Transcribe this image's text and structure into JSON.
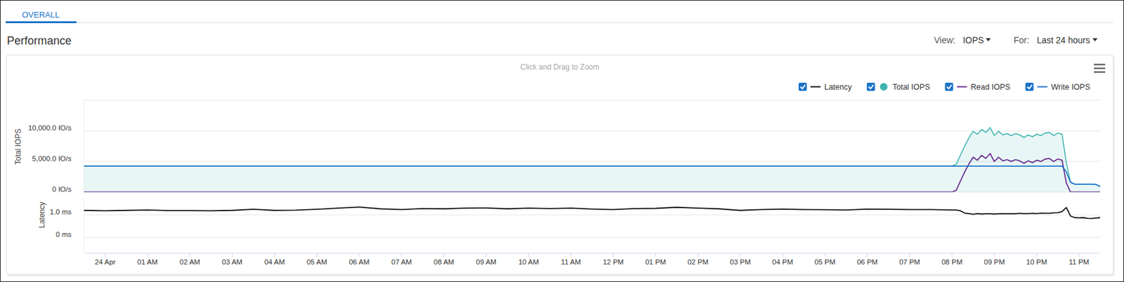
{
  "page": {
    "tab": "OVERALL",
    "title": "Performance",
    "view_label": "View:",
    "view": "IOPS",
    "for_label": "For:",
    "for": "Last 24 hours",
    "hint": "Click and Drag to Zoom"
  },
  "chart_data": [
    {
      "type": "line",
      "y_label": "Total IOPS",
      "grid": true,
      "legend": "top-right",
      "tick_labels": "y",
      "xlim": [
        -0.5,
        23.5
      ],
      "ylim": [
        0,
        15000
      ],
      "yticks": [
        {
          "value": 0,
          "label": "0 IO/s"
        },
        {
          "value": 5000,
          "label": "5,000.0 IO/s"
        },
        {
          "value": 10000,
          "label": "10,000.0 IO/s"
        }
      ],
      "x": [
        -0.5,
        0,
        0.5,
        1,
        1.5,
        2,
        2.5,
        3,
        3.5,
        4,
        4.5,
        5,
        5.5,
        6,
        6.5,
        7,
        7.5,
        8,
        8.5,
        9,
        9.5,
        10,
        10.5,
        11,
        11.5,
        12,
        12.5,
        13,
        13.5,
        14,
        14.5,
        15,
        15.5,
        16,
        16.5,
        17,
        17.5,
        18,
        18.5,
        19,
        19.5,
        20,
        20.1,
        20.2,
        20.3,
        20.4,
        20.5,
        20.6,
        20.7,
        20.8,
        20.9,
        21,
        21.1,
        21.2,
        21.3,
        21.4,
        21.5,
        21.6,
        21.7,
        21.8,
        21.9,
        22,
        22.1,
        22.2,
        22.3,
        22.4,
        22.5,
        22.6,
        22.7,
        22.8,
        22.9,
        23,
        23.1,
        23.2,
        23.3,
        23.4,
        23.5
      ],
      "series": [
        {
          "name": "Total IOPS",
          "type": "area",
          "marker": "circle",
          "color": "#3fb5b0",
          "values": [
            4240,
            4240,
            4240,
            4240,
            4240,
            4240,
            4240,
            4240,
            4240,
            4240,
            4240,
            4240,
            4240,
            4240,
            4240,
            4240,
            4240,
            4240,
            4240,
            4240,
            4240,
            4240,
            4240,
            4240,
            4240,
            4240,
            4240,
            4240,
            4240,
            4240,
            4240,
            4240,
            4240,
            4240,
            4240,
            4240,
            4240,
            4240,
            4240,
            4240,
            4240,
            4240,
            4540,
            6040,
            7540,
            8840,
            9940,
            9440,
            10240,
            9740,
            10540,
            9240,
            9940,
            9340,
            9540,
            9240,
            9540,
            9340,
            8940,
            9340,
            9040,
            9440,
            9240,
            9640,
            9740,
            9240,
            9640,
            9440,
            4800,
            1600,
            1300,
            1300,
            1300,
            1300,
            1300,
            1250,
            900
          ]
        },
        {
          "name": "Read IOPS",
          "type": "line",
          "color": "#6a2c91",
          "values": [
            0,
            0,
            0,
            0,
            0,
            0,
            0,
            0,
            0,
            0,
            0,
            0,
            0,
            0,
            0,
            0,
            0,
            0,
            0,
            0,
            0,
            0,
            0,
            0,
            0,
            0,
            0,
            0,
            0,
            0,
            0,
            0,
            0,
            0,
            0,
            0,
            0,
            0,
            0,
            0,
            0,
            0,
            300,
            1800,
            3300,
            4600,
            5700,
            5200,
            6000,
            5500,
            6300,
            5000,
            5700,
            5100,
            5300,
            5000,
            5300,
            5100,
            4700,
            5100,
            4800,
            5200,
            5000,
            5400,
            5500,
            5000,
            5400,
            5200,
            1500,
            0,
            0,
            0,
            0,
            0,
            0,
            0,
            0
          ]
        },
        {
          "name": "Write IOPS",
          "type": "line",
          "color": "#1a73c9",
          "values": [
            4240,
            4240,
            4240,
            4240,
            4240,
            4240,
            4240,
            4240,
            4240,
            4240,
            4240,
            4240,
            4240,
            4240,
            4240,
            4240,
            4240,
            4240,
            4240,
            4240,
            4240,
            4240,
            4240,
            4240,
            4240,
            4240,
            4240,
            4240,
            4240,
            4240,
            4240,
            4240,
            4240,
            4240,
            4240,
            4240,
            4240,
            4240,
            4240,
            4240,
            4240,
            4240,
            4240,
            4240,
            4240,
            4240,
            4240,
            4240,
            4240,
            4240,
            4240,
            4240,
            4240,
            4240,
            4240,
            4240,
            4240,
            4240,
            4240,
            4240,
            4240,
            4240,
            4240,
            4240,
            4240,
            4240,
            4240,
            4240,
            3300,
            1600,
            1300,
            1300,
            1300,
            1300,
            1300,
            1250,
            900
          ]
        }
      ]
    },
    {
      "type": "line",
      "y_label": "Latency",
      "grid": true,
      "legend": "top-right",
      "tick_labels": true,
      "xlim": [
        -0.5,
        23.5
      ],
      "ylim": [
        -0.7,
        1.75
      ],
      "yticks": [
        {
          "value": 0,
          "label": "0 ms"
        },
        {
          "value": 1,
          "label": "1.0 ms"
        }
      ],
      "xticks": [
        {
          "value": 0,
          "label": "24 Apr"
        },
        {
          "value": 1,
          "label": "01 AM"
        },
        {
          "value": 2,
          "label": "02 AM"
        },
        {
          "value": 3,
          "label": "03 AM"
        },
        {
          "value": 4,
          "label": "04 AM"
        },
        {
          "value": 5,
          "label": "05 AM"
        },
        {
          "value": 6,
          "label": "06 AM"
        },
        {
          "value": 7,
          "label": "07 AM"
        },
        {
          "value": 8,
          "label": "08 AM"
        },
        {
          "value": 9,
          "label": "09 AM"
        },
        {
          "value": 10,
          "label": "10 AM"
        },
        {
          "value": 11,
          "label": "11 AM"
        },
        {
          "value": 12,
          "label": "12 PM"
        },
        {
          "value": 13,
          "label": "01 PM"
        },
        {
          "value": 14,
          "label": "02 PM"
        },
        {
          "value": 15,
          "label": "03 PM"
        },
        {
          "value": 16,
          "label": "04 PM"
        },
        {
          "value": 17,
          "label": "05 PM"
        },
        {
          "value": 18,
          "label": "06 PM"
        },
        {
          "value": 19,
          "label": "07 PM"
        },
        {
          "value": 20,
          "label": "08 PM"
        },
        {
          "value": 21,
          "label": "09 PM"
        },
        {
          "value": 22,
          "label": "10 PM"
        },
        {
          "value": 23,
          "label": "11 PM"
        }
      ],
      "x": [
        -0.5,
        0,
        0.5,
        1,
        1.5,
        2,
        2.5,
        3,
        3.5,
        4,
        4.5,
        5,
        5.5,
        6,
        6.5,
        7,
        7.5,
        8,
        8.5,
        9,
        9.5,
        10,
        10.5,
        11,
        11.5,
        12,
        12.5,
        13,
        13.5,
        14,
        14.5,
        15,
        15.5,
        16,
        16.5,
        17,
        17.5,
        18,
        18.5,
        19,
        19.5,
        20,
        20.1,
        20.2,
        20.3,
        20.4,
        20.5,
        20.6,
        20.7,
        20.8,
        20.9,
        21,
        21.1,
        21.2,
        21.3,
        21.4,
        21.5,
        21.6,
        21.7,
        21.8,
        21.9,
        22,
        22.1,
        22.2,
        22.3,
        22.4,
        22.5,
        22.6,
        22.7,
        22.8,
        22.9,
        23,
        23.1,
        23.2,
        23.3,
        23.4,
        23.5
      ],
      "series": [
        {
          "name": "Latency",
          "type": "line",
          "color": "#111111",
          "values": [
            1.2,
            1.18,
            1.2,
            1.22,
            1.19,
            1.19,
            1.18,
            1.2,
            1.25,
            1.2,
            1.21,
            1.25,
            1.3,
            1.35,
            1.27,
            1.24,
            1.28,
            1.27,
            1.3,
            1.31,
            1.27,
            1.3,
            1.28,
            1.3,
            1.26,
            1.24,
            1.28,
            1.29,
            1.34,
            1.3,
            1.27,
            1.2,
            1.24,
            1.26,
            1.24,
            1.23,
            1.22,
            1.26,
            1.25,
            1.24,
            1.24,
            1.22,
            1.22,
            1.18,
            1.08,
            1.06,
            1.03,
            1.06,
            1.04,
            1.05,
            1.05,
            1.04,
            1.05,
            1.06,
            1.05,
            1.06,
            1.05,
            1.07,
            1.06,
            1.06,
            1.07,
            1.06,
            1.08,
            1.07,
            1.07,
            1.09,
            1.1,
            1.15,
            1.33,
            0.95,
            0.88,
            0.87,
            0.88,
            0.85,
            0.84,
            0.86,
            0.88
          ]
        }
      ]
    }
  ]
}
